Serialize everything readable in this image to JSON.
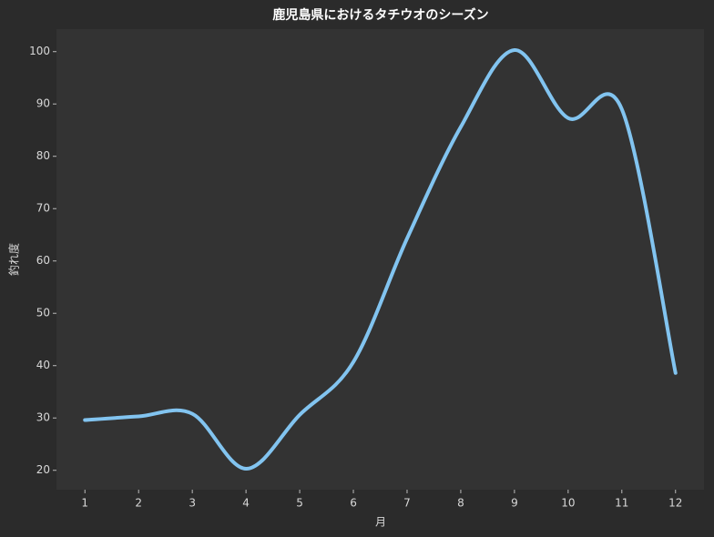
{
  "chart_data": {
    "type": "line",
    "title": "鹿児島県におけるタチウオのシーズン",
    "x_label": "月",
    "y_label": "釣れ度",
    "x": [
      1,
      2,
      3,
      4,
      5,
      6,
      7,
      8,
      9,
      10,
      11,
      12
    ],
    "series": [
      {
        "name": "釣れ度",
        "color": "#82c4f0",
        "values": [
          29.6,
          30.3,
          30.8,
          20.3,
          30.6,
          40.7,
          64.3,
          85.6,
          100.3,
          87.3,
          89,
          38.6
        ]
      }
    ],
    "xlim": [
      0.47,
      12.53
    ],
    "ylim": [
      16.3,
      104.3
    ],
    "xticks": [
      1,
      2,
      3,
      4,
      5,
      6,
      7,
      8,
      9,
      10,
      11,
      12
    ],
    "yticks": [
      20,
      30,
      40,
      50,
      60,
      70,
      80,
      90,
      100
    ],
    "grid": false,
    "smooth": true
  }
}
